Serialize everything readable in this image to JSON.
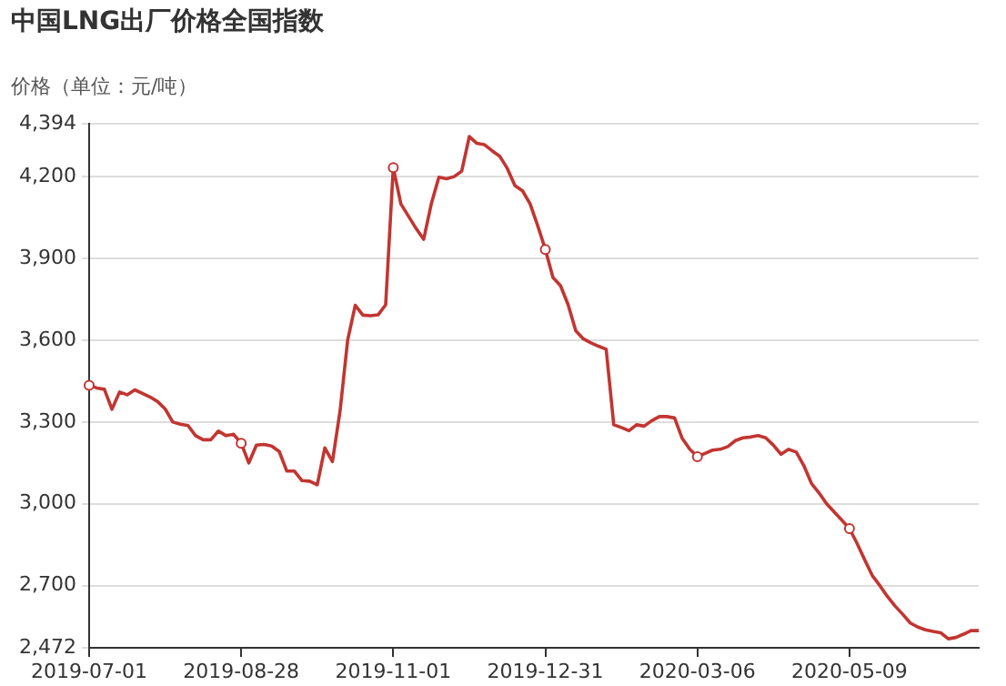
{
  "chart_data": {
    "type": "line",
    "title": "中国LNG出厂价格全国指数",
    "ylabel": "价格（单位：元/吨）",
    "categories": [
      "2019-07-01",
      null,
      null,
      null,
      null,
      null,
      null,
      null,
      null,
      null,
      null,
      null,
      null,
      null,
      null,
      null,
      null,
      null,
      null,
      null,
      "2019-08-28",
      null,
      null,
      null,
      null,
      null,
      null,
      null,
      null,
      null,
      null,
      null,
      null,
      null,
      null,
      null,
      null,
      null,
      null,
      null,
      "2019-11-01",
      null,
      null,
      null,
      null,
      null,
      null,
      null,
      null,
      null,
      null,
      null,
      null,
      null,
      null,
      null,
      null,
      null,
      null,
      null,
      "2019-12-31",
      null,
      null,
      null,
      null,
      null,
      null,
      null,
      null,
      null,
      null,
      null,
      null,
      null,
      null,
      null,
      null,
      null,
      null,
      null,
      "2020-03-06",
      null,
      null,
      null,
      null,
      null,
      null,
      null,
      null,
      null,
      null,
      null,
      null,
      null,
      null,
      null,
      null,
      null,
      null,
      null,
      "2020-05-09",
      null,
      null,
      null,
      null,
      null,
      null,
      null,
      null,
      null,
      null,
      null,
      null,
      null,
      null,
      null,
      null,
      null
    ],
    "series": [
      {
        "color": "#c23531",
        "values": [
          3435,
          3425,
          3420,
          3347,
          3410,
          3400,
          3418,
          3405,
          3392,
          3375,
          3348,
          3300,
          3292,
          3287,
          3250,
          3235,
          3235,
          3267,
          3250,
          3255,
          3222,
          3150,
          3215,
          3218,
          3212,
          3192,
          3120,
          3120,
          3085,
          3083,
          3070,
          3205,
          3155,
          3340,
          3600,
          3728,
          3692,
          3690,
          3693,
          3730,
          4233,
          4100,
          4055,
          4010,
          3970,
          4100,
          4198,
          4192,
          4200,
          4220,
          4347,
          4322,
          4317,
          4295,
          4275,
          4230,
          4167,
          4148,
          4100,
          4020,
          3933,
          3830,
          3800,
          3730,
          3635,
          3605,
          3590,
          3578,
          3567,
          3290,
          3280,
          3268,
          3290,
          3285,
          3305,
          3320,
          3320,
          3315,
          3240,
          3200,
          3173,
          3185,
          3197,
          3200,
          3210,
          3232,
          3242,
          3245,
          3250,
          3242,
          3215,
          3182,
          3200,
          3190,
          3140,
          3075,
          3040,
          3000,
          2970,
          2940,
          2909,
          2855,
          2795,
          2737,
          2700,
          2660,
          2625,
          2595,
          2563,
          2548,
          2538,
          2532,
          2527,
          2505,
          2510,
          2522,
          2535,
          2535
        ]
      }
    ],
    "ylim": [
      2472,
      4394
    ],
    "yticks": [
      {
        "value": 2472,
        "label": "2,472"
      },
      {
        "value": 2700,
        "label": "2,700"
      },
      {
        "value": 3000,
        "label": "3,000"
      },
      {
        "value": 3300,
        "label": "3,300"
      },
      {
        "value": 3600,
        "label": "3,600"
      },
      {
        "value": 3900,
        "label": "3,900"
      },
      {
        "value": 4200,
        "label": "4,200"
      },
      {
        "value": 4394,
        "label": "4,394"
      }
    ],
    "grid": "y",
    "legend": false,
    "line_style": "solid"
  }
}
